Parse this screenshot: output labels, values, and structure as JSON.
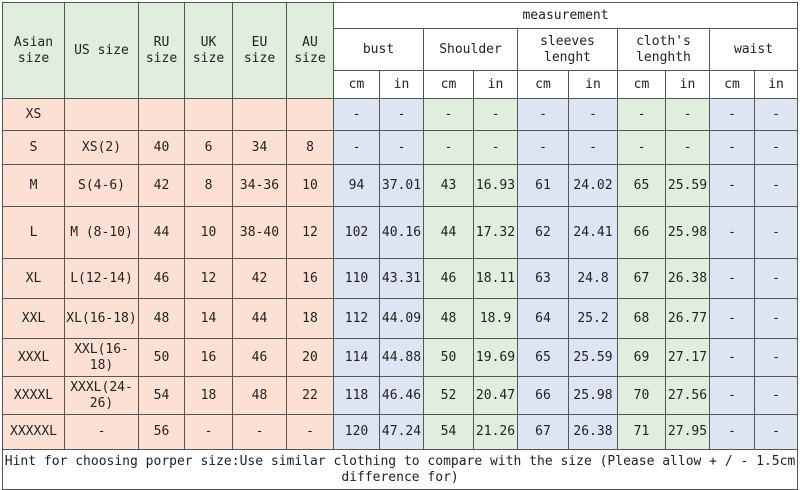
{
  "headers": {
    "asian_size": "Asian size",
    "us_size": "US size",
    "ru_size": "RU size",
    "uk_size": "UK size",
    "eu_size": "EU size",
    "au_size": "AU size",
    "measurement": "measurement",
    "bust": "bust",
    "shoulder": "Shoulder",
    "sleeves": "sleeves lenght",
    "cloths": "cloth's lenghth",
    "waist": "waist",
    "cm": "cm",
    "in": "in"
  },
  "rows": [
    {
      "asian": "XS",
      "us": "",
      "ru": "",
      "uk": "",
      "eu": "",
      "au": "",
      "bust_cm": "-",
      "bust_in": "-",
      "sh_cm": "-",
      "sh_in": "-",
      "sl_cm": "-",
      "sl_in": "-",
      "cl_cm": "-",
      "cl_in": "-",
      "wa_cm": "-",
      "wa_in": "-"
    },
    {
      "asian": "S",
      "us": "XS(2)",
      "ru": "40",
      "uk": "6",
      "eu": "34",
      "au": "8",
      "bust_cm": "-",
      "bust_in": "-",
      "sh_cm": "-",
      "sh_in": "-",
      "sl_cm": "-",
      "sl_in": "-",
      "cl_cm": "-",
      "cl_in": "-",
      "wa_cm": "-",
      "wa_in": "-"
    },
    {
      "asian": "M",
      "us": "S(4-6)",
      "ru": "42",
      "uk": "8",
      "eu": "34-36",
      "au": "10",
      "bust_cm": "94",
      "bust_in": "37.01",
      "sh_cm": "43",
      "sh_in": "16.93",
      "sl_cm": "61",
      "sl_in": "24.02",
      "cl_cm": "65",
      "cl_in": "25.59",
      "wa_cm": "-",
      "wa_in": "-"
    },
    {
      "asian": "L",
      "us": "M (8-10)",
      "ru": "44",
      "uk": "10",
      "eu": "38-40",
      "au": "12",
      "bust_cm": "102",
      "bust_in": "40.16",
      "sh_cm": "44",
      "sh_in": "17.32",
      "sl_cm": "62",
      "sl_in": "24.41",
      "cl_cm": "66",
      "cl_in": "25.98",
      "wa_cm": "-",
      "wa_in": "-"
    },
    {
      "asian": "XL",
      "us": "L(12-14)",
      "ru": "46",
      "uk": "12",
      "eu": "42",
      "au": "16",
      "bust_cm": "110",
      "bust_in": "43.31",
      "sh_cm": "46",
      "sh_in": "18.11",
      "sl_cm": "63",
      "sl_in": "24.8",
      "cl_cm": "67",
      "cl_in": "26.38",
      "wa_cm": "-",
      "wa_in": "-"
    },
    {
      "asian": "XXL",
      "us": "XL(16-18)",
      "ru": "48",
      "uk": "14",
      "eu": "44",
      "au": "18",
      "bust_cm": "112",
      "bust_in": "44.09",
      "sh_cm": "48",
      "sh_in": "18.9",
      "sl_cm": "64",
      "sl_in": "25.2",
      "cl_cm": "68",
      "cl_in": "26.77",
      "wa_cm": "-",
      "wa_in": "-"
    },
    {
      "asian": "XXXL",
      "us": "XXL(16-18)",
      "ru": "50",
      "uk": "16",
      "eu": "46",
      "au": "20",
      "bust_cm": "114",
      "bust_in": "44.88",
      "sh_cm": "50",
      "sh_in": "19.69",
      "sl_cm": "65",
      "sl_in": "25.59",
      "cl_cm": "69",
      "cl_in": "27.17",
      "wa_cm": "-",
      "wa_in": "-"
    },
    {
      "asian": "XXXXL",
      "us": "XXXL(24-26)",
      "ru": "54",
      "uk": "18",
      "eu": "48",
      "au": "22",
      "bust_cm": "118",
      "bust_in": "46.46",
      "sh_cm": "52",
      "sh_in": "20.47",
      "sl_cm": "66",
      "sl_in": "25.98",
      "cl_cm": "70",
      "cl_in": "27.56",
      "wa_cm": "-",
      "wa_in": "-"
    },
    {
      "asian": "XXXXXL",
      "us": "-",
      "ru": "56",
      "uk": "-",
      "eu": "-",
      "au": "-",
      "bust_cm": "120",
      "bust_in": "47.24",
      "sh_cm": "54",
      "sh_in": "21.26",
      "sl_cm": "67",
      "sl_in": "26.38",
      "cl_cm": "71",
      "cl_in": "27.95",
      "wa_cm": "-",
      "wa_in": "-"
    }
  ],
  "hint": "Hint for choosing porper size:Use similar clothing to compare with the size (Please allow + / - 1.5cm difference for)",
  "colors": {
    "size_columns": "#fde0d4",
    "shoulder_cloths": "#e0eedd",
    "bust_sleeves_waist": "#dde4f2"
  }
}
